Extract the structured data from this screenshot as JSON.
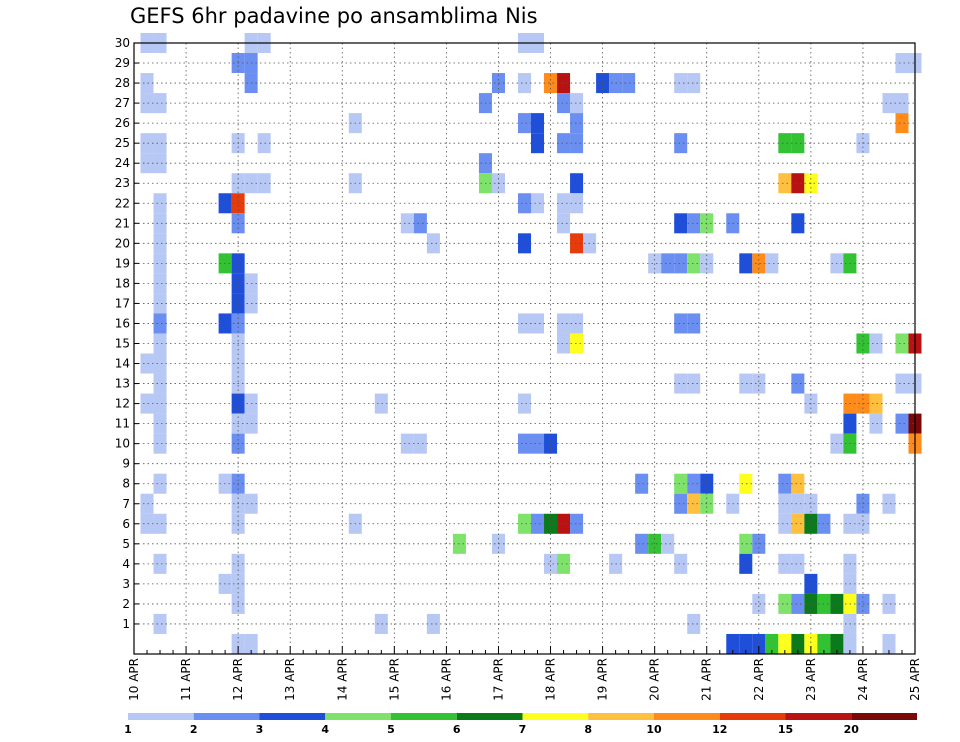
{
  "chart_data": {
    "type": "heatmap",
    "title": "GEFS 6hr padavine po ansamblima Nis",
    "xlabel": "",
    "ylabel": "",
    "x_tick_labels": [
      "10 APR",
      "11 APR",
      "12 APR",
      "13 APR",
      "14 APR",
      "15 APR",
      "16 APR",
      "17 APR",
      "18 APR",
      "19 APR",
      "20 APR",
      "21 APR",
      "22 APR",
      "23 APR",
      "24 APR",
      "25 APR"
    ],
    "y_tick_labels": [
      "1",
      "2",
      "3",
      "4",
      "5",
      "6",
      "7",
      "8",
      "9",
      "10",
      "11",
      "12",
      "13",
      "14",
      "15",
      "16",
      "17",
      "18",
      "19",
      "20",
      "21",
      "22",
      "23",
      "24",
      "25",
      "26",
      "27",
      "28",
      "29",
      "30"
    ],
    "x_unit": "6-hour step from 10 APR 00Z (4 steps per day)",
    "xlim": [
      0,
      60
    ],
    "ylim": [
      0,
      30
    ],
    "grid": true,
    "colorbar": {
      "placement": "bottom",
      "levels": [
        1,
        2,
        3,
        4,
        5,
        6,
        7,
        8,
        10,
        12,
        15,
        20
      ],
      "colors": [
        "#b8c8f5",
        "#6a8ff0",
        "#1f4fd8",
        "#7fe36b",
        "#33c233",
        "#0a7a1a",
        "#ffff1f",
        "#ffbf3f",
        "#ff8c1a",
        "#e63b0a",
        "#b81212",
        "#7a0a0a"
      ]
    },
    "cells": [
      [
        1,
        30,
        1
      ],
      [
        2,
        30,
        1
      ],
      [
        9,
        30,
        1
      ],
      [
        10,
        30,
        1
      ],
      [
        30,
        30,
        1
      ],
      [
        31,
        30,
        1
      ],
      [
        8,
        29,
        2
      ],
      [
        9,
        29,
        2
      ],
      [
        59,
        29,
        1
      ],
      [
        60,
        29,
        1
      ],
      [
        1,
        28,
        1
      ],
      [
        9,
        28,
        2
      ],
      [
        28,
        28,
        2
      ],
      [
        30,
        28,
        1
      ],
      [
        32,
        28,
        10
      ],
      [
        33,
        28,
        15
      ],
      [
        36,
        28,
        3
      ],
      [
        37,
        28,
        2
      ],
      [
        38,
        28,
        2
      ],
      [
        42,
        28,
        1
      ],
      [
        43,
        28,
        1
      ],
      [
        1,
        27,
        1
      ],
      [
        2,
        27,
        1
      ],
      [
        27,
        27,
        2
      ],
      [
        33,
        27,
        2
      ],
      [
        34,
        27,
        1
      ],
      [
        58,
        27,
        1
      ],
      [
        59,
        27,
        1
      ],
      [
        17,
        26,
        1
      ],
      [
        30,
        26,
        2
      ],
      [
        31,
        26,
        3
      ],
      [
        34,
        26,
        2
      ],
      [
        59,
        26,
        10
      ],
      [
        1,
        25,
        1
      ],
      [
        2,
        25,
        1
      ],
      [
        8,
        25,
        1
      ],
      [
        10,
        25,
        1
      ],
      [
        31,
        25,
        3
      ],
      [
        33,
        25,
        2
      ],
      [
        34,
        25,
        2
      ],
      [
        42,
        25,
        2
      ],
      [
        50,
        25,
        5
      ],
      [
        51,
        25,
        5
      ],
      [
        56,
        25,
        1
      ],
      [
        1,
        24,
        1
      ],
      [
        2,
        24,
        1
      ],
      [
        27,
        24,
        2
      ],
      [
        8,
        23,
        1
      ],
      [
        9,
        23,
        1
      ],
      [
        10,
        23,
        1
      ],
      [
        17,
        23,
        1
      ],
      [
        27,
        23,
        4
      ],
      [
        28,
        23,
        1
      ],
      [
        34,
        23,
        3
      ],
      [
        50,
        23,
        8
      ],
      [
        51,
        23,
        15
      ],
      [
        52,
        23,
        7
      ],
      [
        2,
        22,
        1
      ],
      [
        7,
        22,
        3
      ],
      [
        8,
        22,
        12
      ],
      [
        30,
        22,
        2
      ],
      [
        31,
        22,
        1
      ],
      [
        33,
        22,
        1
      ],
      [
        34,
        22,
        1
      ],
      [
        2,
        21,
        1
      ],
      [
        8,
        21,
        2
      ],
      [
        21,
        21,
        1
      ],
      [
        22,
        21,
        2
      ],
      [
        33,
        21,
        1
      ],
      [
        42,
        21,
        3
      ],
      [
        43,
        21,
        2
      ],
      [
        44,
        21,
        4
      ],
      [
        46,
        21,
        2
      ],
      [
        51,
        21,
        3
      ],
      [
        2,
        20,
        1
      ],
      [
        23,
        20,
        1
      ],
      [
        30,
        20,
        3
      ],
      [
        34,
        20,
        12
      ],
      [
        35,
        20,
        1
      ],
      [
        2,
        19,
        1
      ],
      [
        7,
        19,
        5
      ],
      [
        8,
        19,
        3
      ],
      [
        40,
        19,
        1
      ],
      [
        41,
        19,
        2
      ],
      [
        42,
        19,
        2
      ],
      [
        43,
        19,
        4
      ],
      [
        44,
        19,
        1
      ],
      [
        47,
        19,
        3
      ],
      [
        48,
        19,
        10
      ],
      [
        49,
        19,
        1
      ],
      [
        54,
        19,
        1
      ],
      [
        55,
        19,
        5
      ],
      [
        2,
        18,
        1
      ],
      [
        8,
        18,
        3
      ],
      [
        9,
        18,
        1
      ],
      [
        2,
        17,
        1
      ],
      [
        8,
        17,
        3
      ],
      [
        9,
        17,
        1
      ],
      [
        2,
        16,
        2
      ],
      [
        7,
        16,
        3
      ],
      [
        8,
        16,
        2
      ],
      [
        30,
        16,
        1
      ],
      [
        31,
        16,
        1
      ],
      [
        33,
        16,
        1
      ],
      [
        34,
        16,
        1
      ],
      [
        42,
        16,
        2
      ],
      [
        43,
        16,
        2
      ],
      [
        2,
        15,
        1
      ],
      [
        8,
        15,
        1
      ],
      [
        33,
        15,
        1
      ],
      [
        34,
        15,
        7
      ],
      [
        56,
        15,
        5
      ],
      [
        57,
        15,
        1
      ],
      [
        59,
        15,
        4
      ],
      [
        60,
        15,
        15
      ],
      [
        1,
        14,
        1
      ],
      [
        2,
        14,
        1
      ],
      [
        8,
        14,
        1
      ],
      [
        2,
        13,
        1
      ],
      [
        8,
        13,
        1
      ],
      [
        42,
        13,
        1
      ],
      [
        43,
        13,
        1
      ],
      [
        47,
        13,
        1
      ],
      [
        48,
        13,
        1
      ],
      [
        51,
        13,
        2
      ],
      [
        59,
        13,
        1
      ],
      [
        60,
        13,
        1
      ],
      [
        1,
        12,
        1
      ],
      [
        2,
        12,
        1
      ],
      [
        8,
        12,
        3
      ],
      [
        9,
        12,
        1
      ],
      [
        19,
        12,
        1
      ],
      [
        30,
        12,
        1
      ],
      [
        52,
        12,
        1
      ],
      [
        55,
        12,
        10
      ],
      [
        56,
        12,
        10
      ],
      [
        57,
        12,
        8
      ],
      [
        2,
        11,
        1
      ],
      [
        8,
        11,
        1
      ],
      [
        9,
        11,
        1
      ],
      [
        55,
        11,
        3
      ],
      [
        57,
        11,
        1
      ],
      [
        59,
        11,
        2
      ],
      [
        60,
        11,
        20
      ],
      [
        2,
        10,
        1
      ],
      [
        8,
        10,
        2
      ],
      [
        21,
        10,
        1
      ],
      [
        22,
        10,
        1
      ],
      [
        30,
        10,
        2
      ],
      [
        31,
        10,
        2
      ],
      [
        32,
        10,
        3
      ],
      [
        54,
        10,
        1
      ],
      [
        55,
        10,
        5
      ],
      [
        60,
        10,
        10
      ],
      [
        2,
        8,
        1
      ],
      [
        7,
        8,
        1
      ],
      [
        8,
        8,
        2
      ],
      [
        39,
        8,
        2
      ],
      [
        42,
        8,
        4
      ],
      [
        43,
        8,
        2
      ],
      [
        44,
        8,
        3
      ],
      [
        47,
        8,
        7
      ],
      [
        50,
        8,
        2
      ],
      [
        51,
        8,
        8
      ],
      [
        1,
        7,
        1
      ],
      [
        8,
        7,
        1
      ],
      [
        9,
        7,
        1
      ],
      [
        42,
        7,
        2
      ],
      [
        43,
        7,
        8
      ],
      [
        44,
        7,
        4
      ],
      [
        46,
        7,
        1
      ],
      [
        50,
        7,
        1
      ],
      [
        51,
        7,
        1
      ],
      [
        52,
        7,
        1
      ],
      [
        56,
        7,
        2
      ],
      [
        58,
        7,
        1
      ],
      [
        1,
        6,
        1
      ],
      [
        2,
        6,
        1
      ],
      [
        8,
        6,
        1
      ],
      [
        17,
        6,
        1
      ],
      [
        30,
        6,
        4
      ],
      [
        31,
        6,
        2
      ],
      [
        32,
        6,
        6
      ],
      [
        33,
        6,
        15
      ],
      [
        34,
        6,
        2
      ],
      [
        50,
        6,
        1
      ],
      [
        51,
        6,
        8
      ],
      [
        52,
        6,
        6
      ],
      [
        53,
        6,
        2
      ],
      [
        55,
        6,
        1
      ],
      [
        56,
        6,
        1
      ],
      [
        25,
        5,
        4
      ],
      [
        28,
        5,
        1
      ],
      [
        39,
        5,
        2
      ],
      [
        40,
        5,
        5
      ],
      [
        41,
        5,
        1
      ],
      [
        47,
        5,
        4
      ],
      [
        48,
        5,
        2
      ],
      [
        2,
        4,
        1
      ],
      [
        8,
        4,
        1
      ],
      [
        32,
        4,
        1
      ],
      [
        33,
        4,
        4
      ],
      [
        37,
        4,
        1
      ],
      [
        42,
        4,
        1
      ],
      [
        47,
        4,
        3
      ],
      [
        50,
        4,
        1
      ],
      [
        51,
        4,
        1
      ],
      [
        55,
        4,
        1
      ],
      [
        7,
        3,
        1
      ],
      [
        8,
        3,
        1
      ],
      [
        52,
        3,
        3
      ],
      [
        55,
        3,
        1
      ],
      [
        8,
        2,
        1
      ],
      [
        48,
        2,
        1
      ],
      [
        50,
        2,
        4
      ],
      [
        51,
        2,
        2
      ],
      [
        52,
        2,
        6
      ],
      [
        53,
        2,
        5
      ],
      [
        54,
        2,
        6
      ],
      [
        55,
        2,
        7
      ],
      [
        56,
        2,
        2
      ],
      [
        58,
        2,
        1
      ],
      [
        2,
        1,
        1
      ],
      [
        19,
        1,
        1
      ],
      [
        23,
        1,
        1
      ],
      [
        43,
        1,
        1
      ],
      [
        55,
        1,
        1
      ],
      [
        8,
        0,
        1
      ],
      [
        9,
        0,
        1
      ],
      [
        46,
        0,
        3
      ],
      [
        47,
        0,
        3
      ],
      [
        48,
        0,
        3
      ],
      [
        49,
        0,
        5
      ],
      [
        50,
        0,
        7
      ],
      [
        51,
        0,
        6
      ],
      [
        52,
        0,
        7
      ],
      [
        53,
        0,
        5
      ],
      [
        54,
        0,
        6
      ],
      [
        55,
        0,
        1
      ],
      [
        58,
        0,
        1
      ]
    ]
  }
}
